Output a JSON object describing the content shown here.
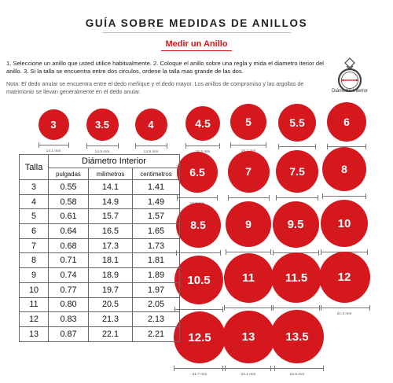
{
  "header": {
    "title": "GUÍA SOBRE MEDIDAS DE ANILLOS",
    "subtitle": "Medir un Anillo"
  },
  "instructions": "1. Seleccione un anillo que usted utilice habitualmente. 2. Coloque el anillo sobre una regla y mida el diametro iterior del anillo. 3. Si la talla se encuentra entre dos circulos, ordene la talla mas grande de las dos.",
  "note": "Nota: El dedo anular se encuentra entre el dedo meñique y el dedo mayor. Los anillos de compromiso y las argollas de matrimonio se llevan generalmente en el dedo anular.",
  "ring_caption": "Diámetro Interior",
  "colors": {
    "accent": "#d4181e",
    "text": "#222222"
  },
  "table": {
    "talla_header": "Talla",
    "diam_header": "Diámetro Interior",
    "units": [
      "pulgadas",
      "milimetros",
      "centimetros"
    ],
    "rows": [
      [
        "3",
        "0.55",
        "14.1",
        "1.41"
      ],
      [
        "4",
        "0.58",
        "14.9",
        "1.49"
      ],
      [
        "5",
        "0.61",
        "15.7",
        "1.57"
      ],
      [
        "6",
        "0.64",
        "16.5",
        "1.65"
      ],
      [
        "7",
        "0.68",
        "17.3",
        "1.73"
      ],
      [
        "8",
        "0.71",
        "18.1",
        "1.81"
      ],
      [
        "9",
        "0.74",
        "18.9",
        "1.89"
      ],
      [
        "10",
        "0.77",
        "19.7",
        "1.97"
      ],
      [
        "11",
        "0.80",
        "20.5",
        "2.05"
      ],
      [
        "12",
        "0.83",
        "21.3",
        "2.13"
      ],
      [
        "13",
        "0.87",
        "22.1",
        "2.21"
      ]
    ]
  },
  "circles": [
    {
      "size": "3",
      "mm": "14.1 mm"
    },
    {
      "size": "3.5",
      "mm": "14.9 mm"
    },
    {
      "size": "4",
      "mm": "14.9 mm"
    },
    {
      "size": "4.5",
      "mm": "15.2 mm"
    },
    {
      "size": "5",
      "mm": "15.7 mm"
    },
    {
      "size": "5.5",
      "mm": "16.1 mm"
    },
    {
      "size": "6",
      "mm": "16.5 mm"
    },
    {
      "size": "6.5",
      "mm": "16.9 mm"
    },
    {
      "size": "7",
      "mm": "17.3 mm"
    },
    {
      "size": "7.5",
      "mm": "17.7 mm"
    },
    {
      "size": "8",
      "mm": "18.1 mm"
    },
    {
      "size": "8.5",
      "mm": "18.5 mm"
    },
    {
      "size": "9",
      "mm": "18.9 mm"
    },
    {
      "size": "9.5",
      "mm": "19.3 mm"
    },
    {
      "size": "10",
      "mm": "19.7 mm"
    },
    {
      "size": "10.5",
      "mm": "20.1 mm"
    },
    {
      "size": "11",
      "mm": "20.5 mm"
    },
    {
      "size": "11.5",
      "mm": "20.9 mm"
    },
    {
      "size": "12",
      "mm": "21.3 mm"
    },
    {
      "size": "12.5",
      "mm": "21.7 mm"
    },
    {
      "size": "13",
      "mm": "22.1 mm"
    },
    {
      "size": "13.5",
      "mm": "22.5 mm"
    }
  ]
}
